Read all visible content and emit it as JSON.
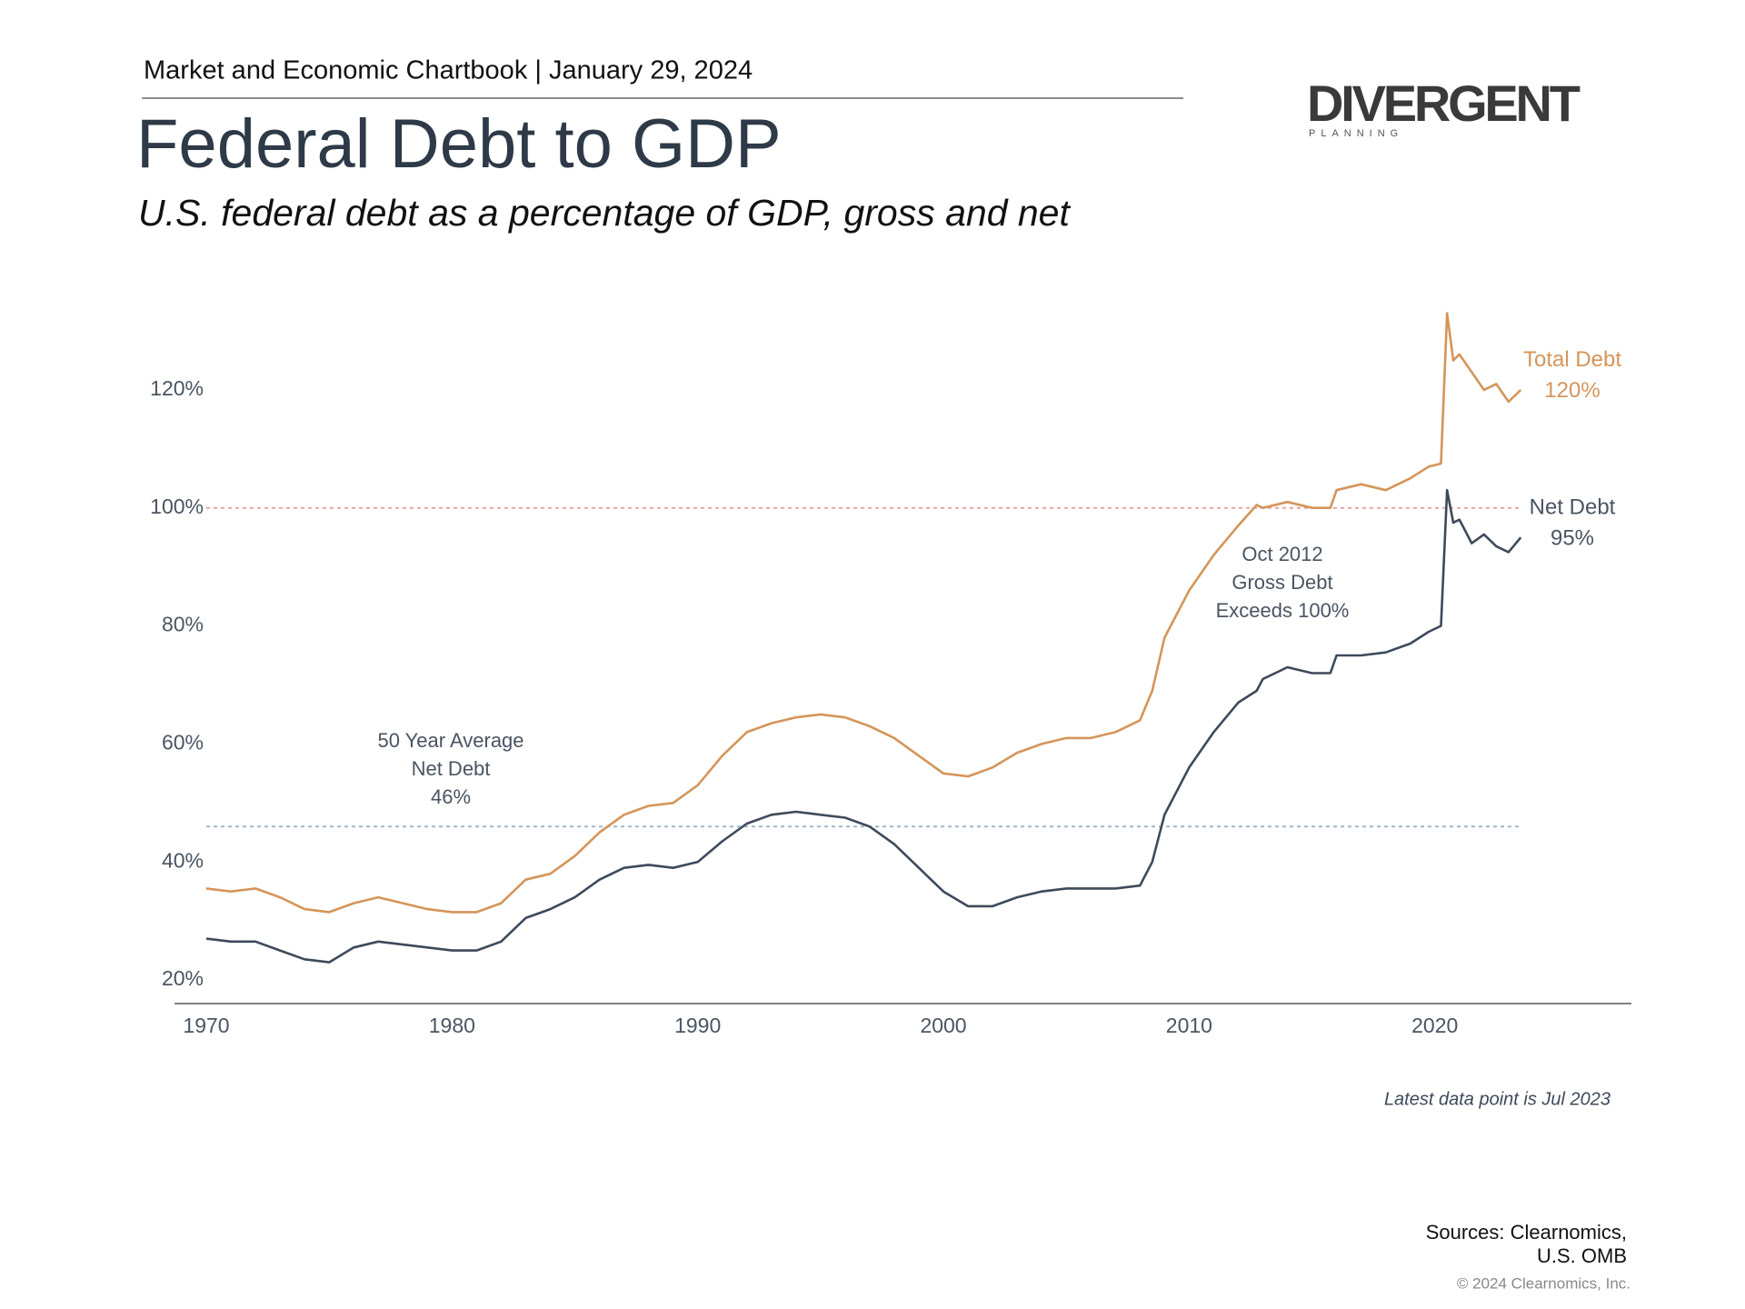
{
  "header": "Market and Economic Chartbook | January 29, 2024",
  "logo": {
    "name": "DIVERGENT",
    "tagline": "PLANNING"
  },
  "chart_data": {
    "type": "line",
    "title": "Federal Debt to GDP",
    "subtitle": "U.S. federal debt as a percentage of GDP, gross and net",
    "x": [
      1970,
      1971,
      1972,
      1973,
      1974,
      1975,
      1976,
      1977,
      1978,
      1979,
      1980,
      1981,
      1982,
      1983,
      1984,
      1985,
      1986,
      1987,
      1988,
      1989,
      1990,
      1991,
      1992,
      1993,
      1994,
      1995,
      1996,
      1997,
      1998,
      1999,
      2000,
      2001,
      2002,
      2003,
      2004,
      2005,
      2006,
      2007,
      2008,
      2008.5,
      2009,
      2010,
      2011,
      2012,
      2012.75,
      2013,
      2014,
      2015,
      2015.75,
      2016,
      2017,
      2018,
      2019,
      2019.75,
      2020.25,
      2020.5,
      2020.75,
      2021,
      2021.5,
      2022,
      2022.5,
      2023,
      2023.5
    ],
    "series": [
      {
        "name": "Total Debt",
        "color": "#d4955a",
        "values": [
          35.5,
          35,
          35.5,
          34,
          32,
          31.5,
          33,
          34,
          33,
          32,
          31.5,
          31.5,
          33,
          37,
          38,
          41,
          45,
          48,
          49.5,
          50,
          53,
          58,
          62,
          63.5,
          64.5,
          65,
          64.5,
          63,
          61,
          58,
          55,
          54.5,
          56,
          58.5,
          60,
          61,
          61,
          62,
          64,
          69,
          78,
          86,
          92,
          97,
          100.5,
          100,
          101,
          100,
          100,
          103,
          104,
          103,
          105,
          107,
          107.5,
          133,
          125,
          126,
          123,
          120,
          121,
          118,
          120
        ],
        "value_labels": [
          null,
          null,
          null,
          null,
          null,
          null,
          null,
          null,
          null,
          null,
          null,
          null,
          null,
          null,
          null,
          null,
          null,
          null,
          null,
          null,
          null,
          null,
          null,
          null,
          null,
          null,
          null,
          null,
          null,
          null,
          null,
          null,
          null,
          null,
          null,
          null,
          null,
          null,
          null,
          null,
          null,
          null,
          null,
          null,
          null,
          null,
          null,
          null,
          null,
          null,
          null,
          null,
          null,
          null,
          null,
          null,
          null,
          null,
          null,
          null,
          null,
          null,
          "120%"
        ]
      },
      {
        "name": "Net Debt",
        "color": "#3d4a5a",
        "values": [
          27,
          26.5,
          26.5,
          25,
          23.5,
          23,
          25.5,
          26.5,
          26,
          25.5,
          25,
          25,
          26.5,
          30.5,
          32,
          34,
          37,
          39,
          39.5,
          39,
          40,
          43.5,
          46.5,
          48,
          48.5,
          48,
          47.5,
          46,
          43,
          39,
          35,
          32.5,
          32.5,
          34,
          35,
          35.5,
          35.5,
          35.5,
          36,
          40,
          48,
          56,
          62,
          67,
          69,
          71,
          73,
          72,
          72,
          75,
          75,
          75.5,
          77,
          79,
          80,
          103,
          97.5,
          98,
          94,
          95.5,
          93.5,
          92.5,
          95
        ],
        "value_labels": [
          null,
          null,
          null,
          null,
          null,
          null,
          null,
          null,
          null,
          null,
          null,
          null,
          null,
          null,
          null,
          null,
          null,
          null,
          null,
          null,
          null,
          null,
          null,
          null,
          null,
          null,
          null,
          null,
          null,
          null,
          null,
          null,
          null,
          null,
          null,
          null,
          null,
          null,
          null,
          null,
          null,
          null,
          null,
          null,
          null,
          null,
          null,
          null,
          null,
          null,
          null,
          null,
          null,
          null,
          null,
          null,
          null,
          null,
          null,
          null,
          null,
          null,
          "95%"
        ]
      }
    ],
    "xlim": [
      1970,
      2028
    ],
    "xticks": [
      1970,
      1980,
      1990,
      2000,
      2010,
      2020
    ],
    "ylim": [
      16,
      136
    ],
    "yticks": [
      {
        "value": 20,
        "label": "20%"
      },
      {
        "value": 40,
        "label": "40%"
      },
      {
        "value": 60,
        "label": "60%"
      },
      {
        "value": 80,
        "label": "80%"
      },
      {
        "value": 100,
        "label": "100%"
      },
      {
        "value": 120,
        "label": "120%"
      }
    ],
    "grid": false,
    "reference_lines": [
      {
        "value": 100,
        "color": "#e8a3a3"
      },
      {
        "value": 46,
        "color": "#9fb8c8"
      }
    ],
    "annotations": [
      [
        "50 Year Average",
        "Net Debt",
        "46%"
      ],
      [
        "Oct 2012",
        "Gross Debt",
        "Exceeds 100%"
      ]
    ],
    "note": "Latest data point is Jul 2023"
  },
  "sources": [
    "Sources: Clearnomics,",
    "U.S. OMB"
  ],
  "copyright": "© 2024 Clearnomics, Inc."
}
